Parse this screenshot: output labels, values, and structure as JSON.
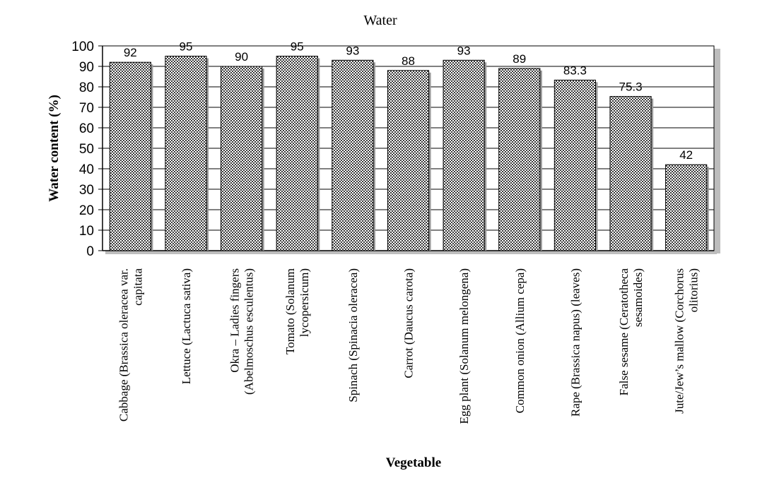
{
  "chart_data": {
    "type": "bar",
    "title": "Water",
    "xlabel": "Vegetable",
    "ylabel": "Water content (%)",
    "ylim": [
      0,
      100
    ],
    "yticks": [
      0,
      10,
      20,
      30,
      40,
      50,
      60,
      70,
      80,
      90,
      100
    ],
    "grid": true,
    "categories": [
      [
        "Cabbage (Brassica oleracea var.",
        "capitata"
      ],
      [
        "Lettuce (Lactuca sativa)"
      ],
      [
        "Okra – Ladies fingers",
        "(Abelmoschus esculentus)"
      ],
      [
        "Tomato (Solanum",
        "lycopersicum)"
      ],
      [
        "Spinach (Spinacia oleracea)"
      ],
      [
        "Carrot (Daucus carota)"
      ],
      [
        "Egg plant (Solanum melongena)"
      ],
      [
        "Common onion (Allium cepa)"
      ],
      [
        "Rape (Brassica napus) (leaves)"
      ],
      [
        "False sesame (Ceratotheca",
        "sesamoides)"
      ],
      [
        "Jute/Jew’s  mallow (Corchorus",
        "olitorius)"
      ]
    ],
    "values": [
      92,
      95,
      90,
      95,
      93,
      88,
      93,
      89,
      83.3,
      75.3,
      42
    ],
    "value_labels": [
      "92",
      "95",
      "90",
      "95",
      "93",
      "88",
      "93",
      "89",
      "83.3",
      "75.3",
      "42"
    ]
  }
}
